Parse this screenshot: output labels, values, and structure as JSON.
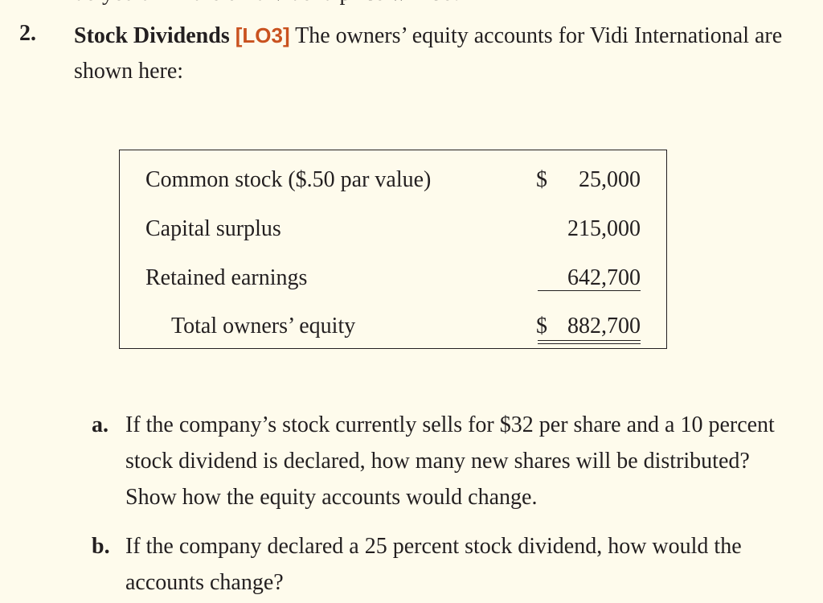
{
  "header": {
    "clipped_text": "do you think the ex-dividend price will be?"
  },
  "problem": {
    "number": "2.",
    "title": "Stock Dividends",
    "learning_objective": "[LO3]",
    "intro": "The owners’ equity accounts for Vidi International are shown here:"
  },
  "equity_table": {
    "rows": [
      {
        "label": "Common stock ($.50 par value)",
        "dollar": "$",
        "amount": "25,000"
      },
      {
        "label": "Capital surplus",
        "dollar": "",
        "amount": "215,000"
      },
      {
        "label": "Retained earnings",
        "dollar": "",
        "amount": "642,700"
      },
      {
        "label": "Total owners’ equity",
        "dollar": "$",
        "amount": "882,700"
      }
    ]
  },
  "questions": [
    {
      "letter": "a.",
      "text": "If the company’s stock currently sells for $32 per share and a 10 percent stock dividend is declared, how many new shares will be distributed? Show how the equity accounts would change."
    },
    {
      "letter": "b.",
      "text": "If the company declared a 25 percent stock dividend, how would the accounts change?"
    }
  ]
}
